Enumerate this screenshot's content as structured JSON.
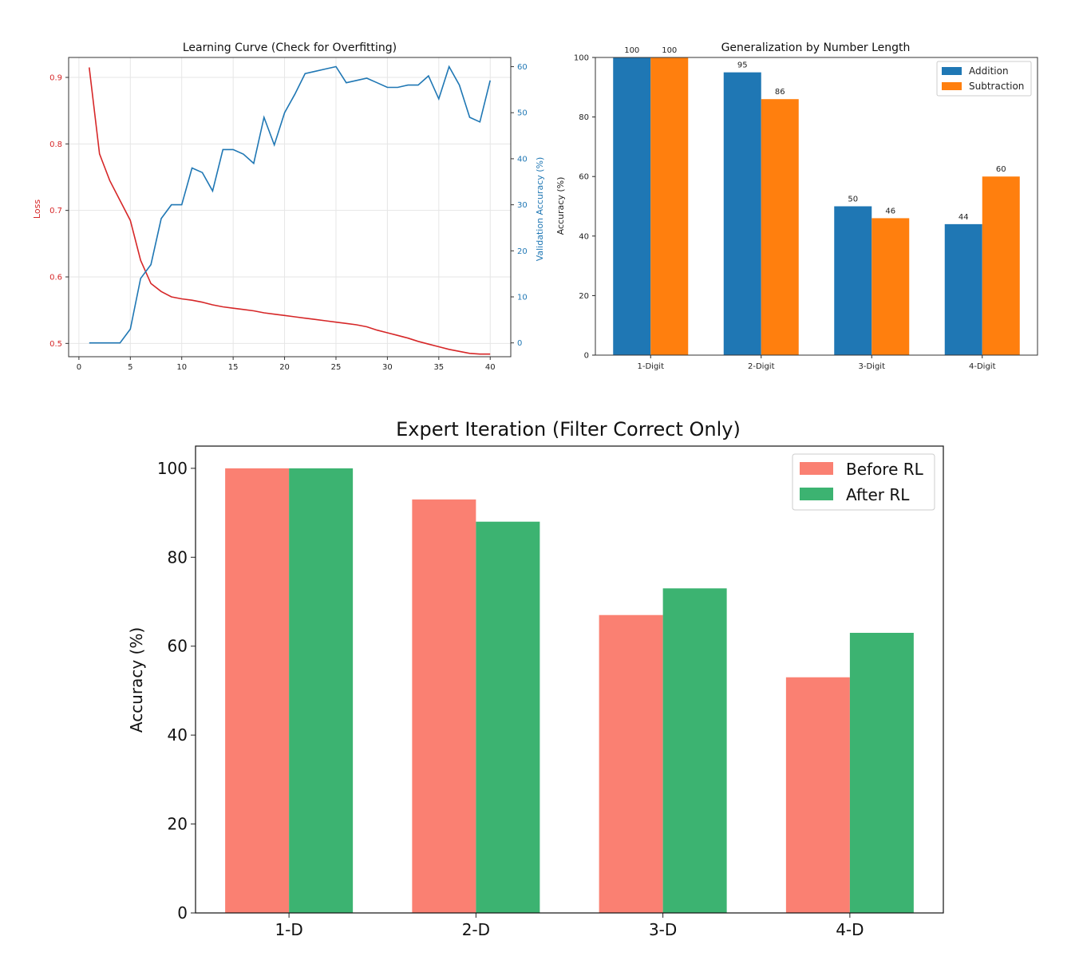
{
  "chart_data": [
    {
      "type": "line",
      "title": "Learning Curve (Check for Overfitting)",
      "xlabel": "",
      "ylabel_left": "Loss",
      "ylabel_right": "Validation Accuracy (%)",
      "xlim": [
        -1,
        42
      ],
      "ylim_left": [
        0.48,
        0.93
      ],
      "ylim_right": [
        -3,
        62
      ],
      "xticks": [
        0,
        5,
        10,
        15,
        20,
        25,
        30,
        35,
        40
      ],
      "yticks_left": [
        0.5,
        0.6,
        0.7,
        0.8,
        0.9
      ],
      "yticks_right": [
        0,
        10,
        20,
        30,
        40,
        50,
        60
      ],
      "grid": true,
      "colors": {
        "loss": "#d62728",
        "accuracy": "#1f77b4"
      },
      "x": [
        1,
        2,
        3,
        4,
        5,
        6,
        7,
        8,
        9,
        10,
        11,
        12,
        13,
        14,
        15,
        16,
        17,
        18,
        19,
        20,
        21,
        22,
        23,
        24,
        25,
        26,
        27,
        28,
        29,
        30,
        31,
        32,
        33,
        34,
        35,
        36,
        37,
        38,
        39,
        40
      ],
      "series": [
        {
          "name": "Loss",
          "axis": "left",
          "values": [
            0.915,
            0.785,
            0.745,
            0.715,
            0.685,
            0.625,
            0.59,
            0.578,
            0.57,
            0.567,
            0.565,
            0.562,
            0.558,
            0.555,
            0.553,
            0.551,
            0.549,
            0.546,
            0.544,
            0.542,
            0.54,
            0.538,
            0.536,
            0.534,
            0.532,
            0.53,
            0.528,
            0.525,
            0.52,
            0.516,
            0.512,
            0.508,
            0.503,
            0.499,
            0.495,
            0.491,
            0.488,
            0.485,
            0.484,
            0.484
          ]
        },
        {
          "name": "Validation Accuracy (%)",
          "axis": "right",
          "values": [
            0,
            0,
            0,
            0,
            3,
            14,
            17,
            27,
            30,
            30,
            38,
            37,
            33,
            42,
            42,
            41,
            39,
            49,
            43,
            50,
            54,
            58.5,
            59,
            59.5,
            60,
            56.5,
            57,
            57.5,
            56.5,
            55.5,
            55.5,
            56,
            56,
            58,
            53,
            60,
            56,
            49,
            48,
            57
          ]
        }
      ]
    },
    {
      "type": "bar",
      "title": "Generalization by Number Length",
      "xlabel": "",
      "ylabel": "Accuracy (%)",
      "ylim": [
        0,
        100
      ],
      "yticks": [
        0,
        20,
        40,
        60,
        80,
        100
      ],
      "categories": [
        "1-Digit",
        "2-Digit",
        "3-Digit",
        "4-Digit"
      ],
      "legend_position": "top-right",
      "series": [
        {
          "name": "Addition",
          "color": "#1f77b4",
          "values": [
            100,
            95,
            50,
            44
          ]
        },
        {
          "name": "Subtraction",
          "color": "#ff7f0e",
          "values": [
            100,
            86,
            46,
            60
          ]
        }
      ]
    },
    {
      "type": "bar",
      "title": "Expert Iteration (Filter Correct Only)",
      "xlabel": "",
      "ylabel": "Accuracy (%)",
      "ylim": [
        0,
        105
      ],
      "yticks": [
        0,
        20,
        40,
        60,
        80,
        100
      ],
      "categories": [
        "1-D",
        "2-D",
        "3-D",
        "4-D"
      ],
      "legend_position": "top-right",
      "series": [
        {
          "name": "Before RL",
          "color": "#fa8072",
          "values": [
            100,
            93,
            67,
            53
          ]
        },
        {
          "name": "After RL",
          "color": "#3cb371",
          "values": [
            100,
            88,
            73,
            63
          ]
        }
      ]
    }
  ]
}
